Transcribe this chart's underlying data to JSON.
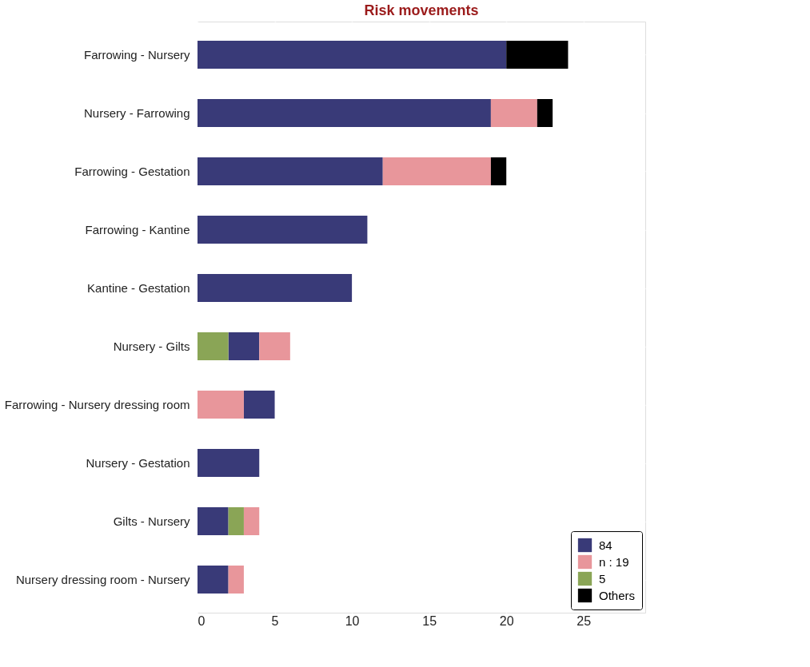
{
  "chart_data": {
    "type": "bar",
    "orientation": "horizontal",
    "title": "Risk movements",
    "categories": [
      "Farrowing - Nursery",
      "Nursery - Farrowing",
      "Farrowing - Gestation",
      "Farrowing - Kantine",
      "Kantine - Gestation",
      "Nursery - Gilts",
      "Farrowing - Nursery dressing room",
      "Nursery - Gestation",
      "Gilts - Nursery",
      "Nursery dressing room - Nursery"
    ],
    "series": [
      {
        "name": "84",
        "color": "#393a78",
        "values": [
          20,
          19,
          12,
          11,
          10,
          2,
          2,
          4,
          2,
          2
        ],
        "base": [
          0,
          0,
          0,
          0,
          0,
          2,
          3,
          0,
          0,
          0
        ]
      },
      {
        "name": "n : 19",
        "color": "#e8969b",
        "values": [
          null,
          3,
          7,
          null,
          null,
          2,
          3,
          null,
          1,
          1
        ],
        "base": [
          null,
          19,
          12,
          null,
          null,
          4,
          0,
          null,
          3,
          2
        ]
      },
      {
        "name": "5",
        "color": "#8aa556",
        "values": [
          null,
          null,
          null,
          null,
          null,
          2,
          null,
          null,
          1,
          null
        ],
        "base": [
          null,
          null,
          null,
          null,
          null,
          0,
          null,
          null,
          2,
          null
        ]
      },
      {
        "name": "Others",
        "color": "#000000",
        "values": [
          4,
          1,
          1,
          null,
          null,
          null,
          null,
          null,
          null,
          null
        ],
        "base": [
          20,
          22,
          19,
          null,
          null,
          null,
          null,
          null,
          null,
          null
        ]
      }
    ],
    "xlim": [
      0,
      29
    ],
    "xticks": [
      0,
      5,
      10,
      15,
      20,
      25
    ],
    "grid": true,
    "legend": "bottom right"
  }
}
